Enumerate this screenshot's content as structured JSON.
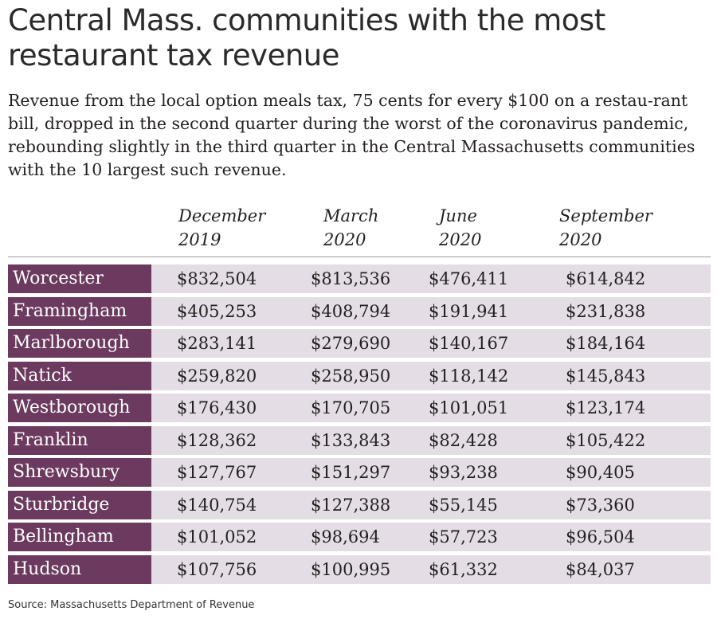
{
  "title": "Central Mass. communities with the most restaurant tax revenue",
  "subtitle": "Revenue from the local option meals tax, 75 cents for every $100 on a restau-rant bill, dropped in the second quarter during the worst of the coronavirus pandemic, rebounding slightly in the third quarter in the Central Massachusetts communities with the 10 largest such revenue.",
  "source": "Source: Massachusetts Department of Revenue",
  "colors": {
    "label_bg": "#6b3a5e",
    "row_bg": "#e4dde6",
    "label_text": "#ffffff"
  },
  "chart_data": {
    "type": "table",
    "columns": [
      "December 2019",
      "March 2020",
      "June 2020",
      "September 2020"
    ],
    "column_lines": [
      [
        "December",
        "2019"
      ],
      [
        "March",
        "2020"
      ],
      [
        "June",
        "2020"
      ],
      [
        "September",
        "2020"
      ]
    ],
    "rows": [
      {
        "community": "Worcester",
        "values": [
          "$832,504",
          "$813,536",
          "$476,411",
          "$614,842"
        ]
      },
      {
        "community": "Framingham",
        "values": [
          "$405,253",
          "$408,794",
          "$191,941",
          "$231,838"
        ]
      },
      {
        "community": "Marlborough",
        "values": [
          "$283,141",
          "$279,690",
          "$140,167",
          "$184,164"
        ]
      },
      {
        "community": "Natick",
        "values": [
          "$259,820",
          "$258,950",
          "$118,142",
          "$145,843"
        ]
      },
      {
        "community": "Westborough",
        "values": [
          "$176,430",
          "$170,705",
          "$101,051",
          "$123,174"
        ]
      },
      {
        "community": "Franklin",
        "values": [
          "$128,362",
          "$133,843",
          "$82,428",
          "$105,422"
        ]
      },
      {
        "community": "Shrewsbury",
        "values": [
          "$127,767",
          "$151,297",
          "$93,238",
          "$90,405"
        ]
      },
      {
        "community": "Sturbridge",
        "values": [
          "$140,754",
          "$127,388",
          "$55,145",
          "$73,360"
        ]
      },
      {
        "community": "Bellingham",
        "values": [
          "$101,052",
          "$98,694",
          "$57,723",
          "$96,504"
        ]
      },
      {
        "community": "Hudson",
        "values": [
          "$107,756",
          "$100,995",
          "$61,332",
          "$84,037"
        ]
      }
    ]
  }
}
